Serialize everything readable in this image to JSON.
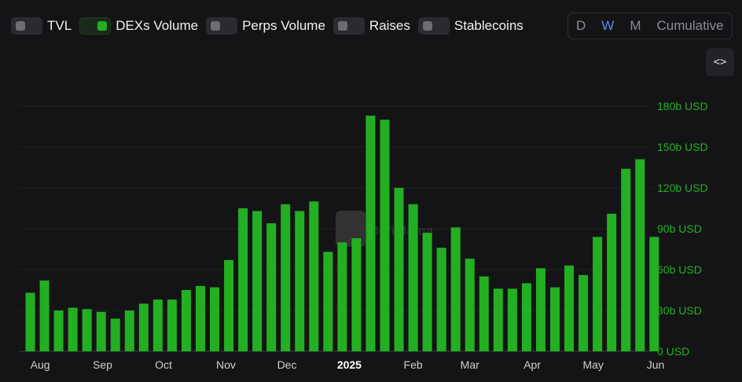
{
  "toggles": [
    {
      "label": "TVL",
      "on": false
    },
    {
      "label": "DEXs Volume",
      "on": true
    },
    {
      "label": "Perps Volume",
      "on": false
    },
    {
      "label": "Raises",
      "on": false
    },
    {
      "label": "Stablecoins",
      "on": false
    }
  ],
  "range": {
    "options": [
      "D",
      "W",
      "M",
      "Cumulative"
    ],
    "active": "W"
  },
  "embed": {
    "icon": "code-icon",
    "glyph": "<>"
  },
  "colors": {
    "bar": "#22b022",
    "axis_label": "#23b023",
    "active_range": "#4d8ff5",
    "background": "#141416"
  },
  "chart_data": {
    "type": "bar",
    "series": [
      {
        "name": "DEXs Volume",
        "values": [
          43,
          52,
          30,
          32,
          31,
          29,
          24,
          30,
          35,
          38,
          38,
          45,
          48,
          47,
          67,
          105,
          103,
          94,
          108,
          103,
          110,
          73,
          80,
          83,
          173,
          170,
          120,
          108,
          87,
          76,
          91,
          68,
          55,
          46,
          46,
          50,
          61,
          47,
          63,
          56,
          84,
          101,
          134,
          141,
          84
        ]
      }
    ],
    "y_ticks": [
      "0 USD",
      "30b USD",
      "60b USD",
      "90b USD",
      "120b USD",
      "150b USD",
      "180b USD"
    ],
    "y_tick_values": [
      0,
      30,
      60,
      90,
      120,
      150,
      180
    ],
    "ylim": [
      0,
      180
    ],
    "y_unit": "b USD",
    "x_ticks": [
      {
        "label": "Aug",
        "index": 0.7,
        "bold": false
      },
      {
        "label": "Sep",
        "index": 5.1,
        "bold": false
      },
      {
        "label": "Oct",
        "index": 9.4,
        "bold": false
      },
      {
        "label": "Nov",
        "index": 13.8,
        "bold": false
      },
      {
        "label": "Dec",
        "index": 18.1,
        "bold": false
      },
      {
        "label": "2025",
        "index": 22.5,
        "bold": true
      },
      {
        "label": "Feb",
        "index": 27.0,
        "bold": false
      },
      {
        "label": "Mar",
        "index": 31.0,
        "bold": false
      },
      {
        "label": "Apr",
        "index": 35.4,
        "bold": false
      },
      {
        "label": "May",
        "index": 39.7,
        "bold": false
      },
      {
        "label": "Jun",
        "index": 44.1,
        "bold": false
      }
    ],
    "watermark": "DefiLlama",
    "grid": true,
    "y_axis_position": "right"
  }
}
